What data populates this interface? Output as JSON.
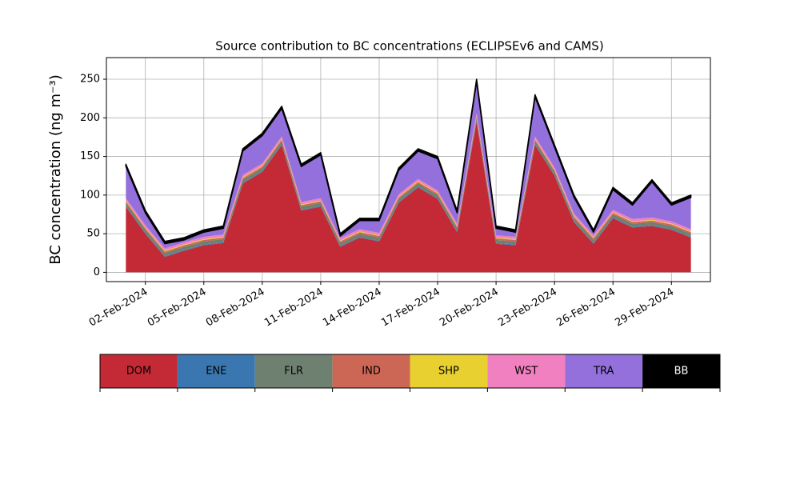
{
  "chart_data": {
    "type": "stacked_area",
    "title": "Source contribution to BC concentrations (ECLIPSEv6 and CAMS)",
    "y_label": "BC concentration (ng m⁻³)",
    "x": [
      "2024-02-01",
      "2024-02-02",
      "2024-02-03",
      "2024-02-04",
      "2024-02-05",
      "2024-02-06",
      "2024-02-07",
      "2024-02-08",
      "2024-02-09",
      "2024-02-10",
      "2024-02-11",
      "2024-02-12",
      "2024-02-13",
      "2024-02-14",
      "2024-02-15",
      "2024-02-16",
      "2024-02-17",
      "2024-02-18",
      "2024-02-19",
      "2024-02-20",
      "2024-02-21",
      "2024-02-22",
      "2024-02-23",
      "2024-02-24",
      "2024-02-25",
      "2024-02-26",
      "2024-02-27",
      "2024-02-28",
      "2024-02-29",
      "2024-03-01"
    ],
    "series": [
      {
        "name": "DOM",
        "color": "#c42a35",
        "values": [
          85,
          50,
          20,
          28,
          35,
          38,
          115,
          130,
          165,
          80,
          85,
          33,
          45,
          40,
          90,
          110,
          95,
          52,
          195,
          37,
          35,
          165,
          125,
          65,
          37,
          70,
          58,
          60,
          55,
          45
        ]
      },
      {
        "name": "ENE",
        "color": "#3a77b0",
        "values": [
          1,
          1,
          1,
          1,
          1,
          1,
          1,
          1,
          1,
          1,
          1,
          1,
          1,
          1,
          1,
          1,
          1,
          1,
          1,
          1,
          1,
          1,
          1,
          1,
          1,
          1,
          1,
          1,
          1,
          1
        ]
      },
      {
        "name": "FLR",
        "color": "#6e8070",
        "values": [
          4,
          4,
          4,
          4,
          4,
          4,
          4,
          4,
          4,
          4,
          4,
          4,
          4,
          4,
          4,
          4,
          4,
          4,
          4,
          4,
          4,
          4,
          4,
          4,
          4,
          4,
          4,
          4,
          4,
          4
        ]
      },
      {
        "name": "IND",
        "color": "#cc6655",
        "values": [
          2,
          2,
          2,
          2,
          2,
          2,
          2,
          2,
          2,
          2,
          2,
          2,
          2,
          2,
          2,
          2,
          2,
          2,
          2,
          2,
          2,
          2,
          2,
          2,
          2,
          2,
          2,
          2,
          2,
          2
        ]
      },
      {
        "name": "SHP",
        "color": "#e8d030",
        "values": [
          1,
          1,
          1,
          1,
          1,
          1,
          1,
          1,
          1,
          1,
          1,
          1,
          1,
          1,
          1,
          1,
          1,
          1,
          1,
          1,
          1,
          1,
          1,
          1,
          1,
          1,
          1,
          1,
          1,
          1
        ]
      },
      {
        "name": "WST",
        "color": "#f080c0",
        "values": [
          3,
          3,
          3,
          3,
          3,
          3,
          3,
          3,
          3,
          3,
          3,
          3,
          3,
          3,
          3,
          3,
          3,
          3,
          3,
          3,
          3,
          3,
          3,
          3,
          3,
          3,
          3,
          3,
          3,
          3
        ]
      },
      {
        "name": "TRA",
        "color": "#9370db",
        "values": [
          41,
          16,
          6,
          3,
          6,
          8,
          31,
          36,
          36,
          46,
          56,
          3,
          11,
          16,
          31,
          36,
          41,
          14,
          41,
          9,
          6,
          51,
          26,
          21,
          4,
          26,
          18,
          46,
          21,
          41
        ]
      },
      {
        "name": "BB",
        "color": "#000000",
        "values": [
          3,
          3,
          3,
          3,
          3,
          3,
          3,
          3,
          3,
          3,
          3,
          3,
          3,
          3,
          3,
          3,
          3,
          3,
          3,
          3,
          3,
          3,
          3,
          3,
          3,
          3,
          3,
          3,
          3,
          3
        ]
      }
    ],
    "xlim": [
      "2024-01-31",
      "2024-03-02"
    ],
    "xticks": [
      {
        "value": "2024-02-02",
        "label": "02-Feb-2024"
      },
      {
        "value": "2024-02-05",
        "label": "05-Feb-2024"
      },
      {
        "value": "2024-02-08",
        "label": "08-Feb-2024"
      },
      {
        "value": "2024-02-11",
        "label": "11-Feb-2024"
      },
      {
        "value": "2024-02-14",
        "label": "14-Feb-2024"
      },
      {
        "value": "2024-02-17",
        "label": "17-Feb-2024"
      },
      {
        "value": "2024-02-20",
        "label": "20-Feb-2024"
      },
      {
        "value": "2024-02-23",
        "label": "23-Feb-2024"
      },
      {
        "value": "2024-02-26",
        "label": "26-Feb-2024"
      },
      {
        "value": "2024-02-29",
        "label": "29-Feb-2024"
      }
    ],
    "ylim": [
      -12,
      278
    ],
    "yticks": [
      0,
      50,
      100,
      150,
      200,
      250
    ],
    "grid": true
  }
}
